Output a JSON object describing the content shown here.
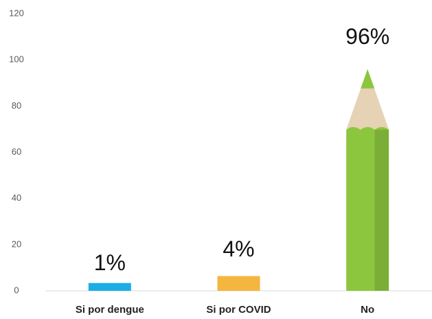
{
  "chart_data": {
    "type": "pencil_bar",
    "categories": [
      "Si por dengue",
      "Si por COVID",
      "No"
    ],
    "values": [
      1,
      4,
      96
    ],
    "value_labels": [
      "1%",
      "4%",
      "96%"
    ],
    "colors": [
      "#1aaee5",
      "#f4b63f",
      "#8cc63e"
    ],
    "ylim": [
      0,
      120
    ],
    "yticks": [
      0,
      20,
      40,
      60,
      80,
      100,
      120
    ],
    "grid": false
  }
}
